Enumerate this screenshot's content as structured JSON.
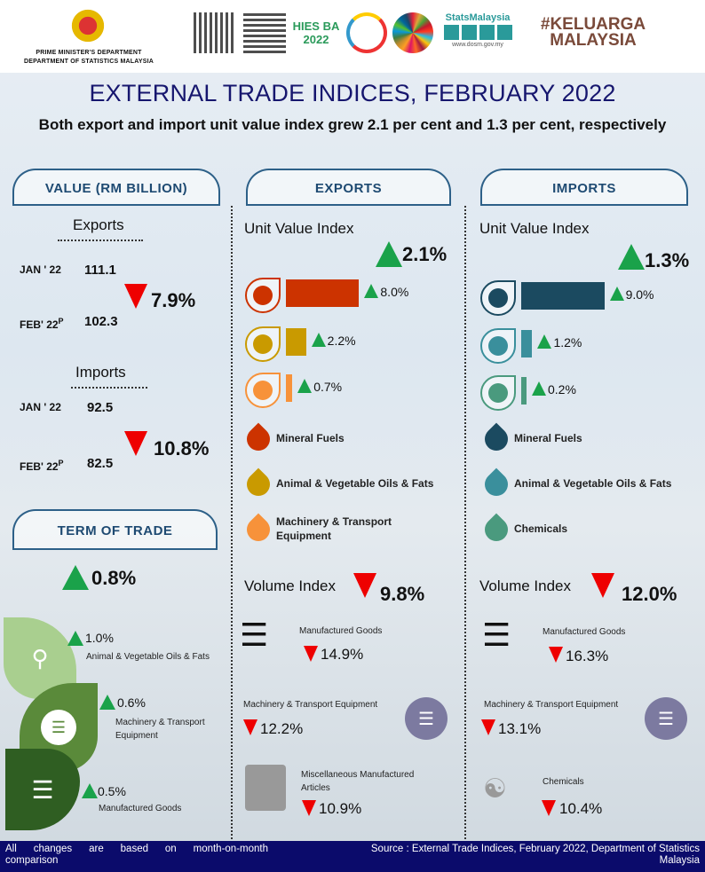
{
  "header": {
    "dept_line1": "PRIME MINISTER'S DEPARTMENT",
    "dept_line2": "DEPARTMENT OF STATISTICS MALAYSIA",
    "logos": {
      "hiesba": "HIES BA 2022",
      "stats": "StatsMalaysia",
      "stats_url": "www.dosm.gov.my",
      "keluarga": "#KELUARGA MALAYSIA"
    }
  },
  "title": "EXTERNAL TRADE INDICES, FEBRUARY 2022",
  "subtitle": "Both export and import unit value index grew 2.1 per cent and 1.3 per cent, respectively",
  "value": {
    "heading": "VALUE (RM BILLION)",
    "exports": {
      "label": "Exports",
      "jan_label": "JAN ' 22",
      "jan_value": "111.1",
      "feb_label": "FEB' 22",
      "feb_sup": "P",
      "feb_value": "102.3",
      "change": "7.9%"
    },
    "imports": {
      "label": "Imports",
      "jan_label": "JAN ' 22",
      "jan_value": "92.5",
      "feb_label": "FEB' 22",
      "feb_sup": "P",
      "feb_value": "82.5",
      "change": "10.8%"
    }
  },
  "terms": {
    "heading": "TERM OF TRADE",
    "change": "0.8%",
    "items": [
      {
        "label": "Animal & Vegetable Oils & Fats",
        "change": "1.0%"
      },
      {
        "label": "Machinery & Transport Equipment",
        "change": "0.6%"
      },
      {
        "label": "Manufactured Goods",
        "change": "0.5%"
      }
    ]
  },
  "exports": {
    "heading": "EXPORTS",
    "uvi_label": "Unit Value Index",
    "uvi_change": "2.1%",
    "bars": [
      {
        "change": "8.0%",
        "value": 8.0,
        "color": "#cc3300"
      },
      {
        "change": "2.2%",
        "value": 2.2,
        "color": "#c99a00"
      },
      {
        "change": "0.7%",
        "value": 0.7,
        "color": "#f7923a"
      }
    ],
    "legend": [
      "Mineral Fuels",
      "Animal & Vegetable Oils & Fats",
      "Machinery & Transport Equipment"
    ],
    "vi_label": "Volume Index",
    "vi_change": "9.8%",
    "vi_items": [
      {
        "label": "Manufactured Goods",
        "change": "14.9%"
      },
      {
        "label": "Machinery & Transport Equipment",
        "change": "12.2%"
      },
      {
        "label": "Miscellaneous Manufactured Articles",
        "change": "10.9%"
      }
    ]
  },
  "imports": {
    "heading": "IMPORTS",
    "uvi_label": "Unit Value Index",
    "uvi_change": "1.3%",
    "bars": [
      {
        "change": "9.0%",
        "value": 9.0,
        "color": "#1b4a60"
      },
      {
        "change": "1.2%",
        "value": 1.2,
        "color": "#3a8f9c"
      },
      {
        "change": "0.2%",
        "value": 0.2,
        "color": "#4a9a7e"
      }
    ],
    "legend": [
      "Mineral Fuels",
      "Animal & Vegetable Oils & Fats",
      "Chemicals"
    ],
    "vi_label": "Volume Index",
    "vi_change": "12.0%",
    "vi_items": [
      {
        "label": "Manufactured Goods",
        "change": "16.3%"
      },
      {
        "label": "Machinery & Transport Equipment",
        "change": "13.1%"
      },
      {
        "label": "Chemicals",
        "change": "10.4%"
      }
    ]
  },
  "footer": {
    "note": "All changes are based on month-on-month comparison",
    "source": "Source : External Trade Indices, February 2022, Department of Statistics Malaysia"
  }
}
